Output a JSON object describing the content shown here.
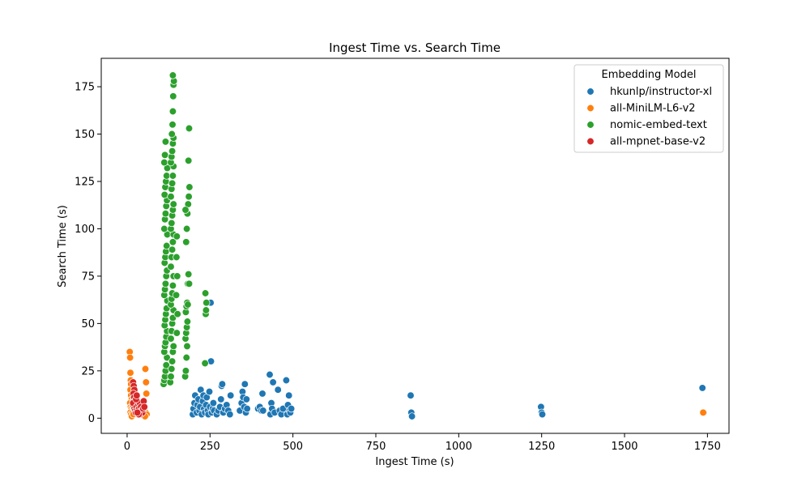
{
  "chart_data": {
    "type": "scatter",
    "title": "Ingest Time vs. Search Time",
    "xlabel": "Ingest Time (s)",
    "ylabel": "Search Time (s)",
    "xlim": [
      -78,
      1815
    ],
    "ylim": [
      -8,
      190
    ],
    "xticks": [
      0,
      250,
      500,
      750,
      1000,
      1250,
      1500,
      1750
    ],
    "yticks": [
      0,
      25,
      50,
      75,
      100,
      125,
      150,
      175
    ],
    "grid": false,
    "legend": {
      "title": "Embedding Model",
      "placement": "top-right"
    },
    "series": [
      {
        "name": "hkunlp/instructor-xl",
        "color": "#1f77b4",
        "points": [
          [
            198,
            2
          ],
          [
            200,
            5
          ],
          [
            203,
            8
          ],
          [
            205,
            12
          ],
          [
            210,
            3
          ],
          [
            212,
            7
          ],
          [
            215,
            10
          ],
          [
            218,
            4
          ],
          [
            220,
            6
          ],
          [
            222,
            15
          ],
          [
            225,
            2
          ],
          [
            228,
            9
          ],
          [
            230,
            12
          ],
          [
            232,
            5
          ],
          [
            235,
            3
          ],
          [
            238,
            7
          ],
          [
            240,
            11
          ],
          [
            243,
            4
          ],
          [
            245,
            2
          ],
          [
            248,
            14
          ],
          [
            250,
            6
          ],
          [
            252,
            61
          ],
          [
            253,
            30
          ],
          [
            255,
            3
          ],
          [
            258,
            5
          ],
          [
            260,
            8
          ],
          [
            262,
            4
          ],
          [
            270,
            2
          ],
          [
            275,
            4
          ],
          [
            280,
            6
          ],
          [
            283,
            10
          ],
          [
            285,
            17
          ],
          [
            287,
            18
          ],
          [
            290,
            3
          ],
          [
            295,
            5
          ],
          [
            300,
            7
          ],
          [
            305,
            4
          ],
          [
            310,
            2
          ],
          [
            312,
            12
          ],
          [
            340,
            4
          ],
          [
            345,
            8
          ],
          [
            348,
            14
          ],
          [
            350,
            11
          ],
          [
            353,
            6
          ],
          [
            355,
            18
          ],
          [
            358,
            3
          ],
          [
            360,
            10
          ],
          [
            362,
            5
          ],
          [
            395,
            5
          ],
          [
            400,
            6
          ],
          [
            405,
            4
          ],
          [
            408,
            13
          ],
          [
            410,
            4
          ],
          [
            430,
            23
          ],
          [
            432,
            2
          ],
          [
            435,
            8
          ],
          [
            437,
            5
          ],
          [
            440,
            19
          ],
          [
            445,
            3
          ],
          [
            455,
            15
          ],
          [
            460,
            4
          ],
          [
            465,
            2
          ],
          [
            470,
            5
          ],
          [
            480,
            20
          ],
          [
            483,
            2
          ],
          [
            485,
            7
          ],
          [
            488,
            12
          ],
          [
            490,
            4
          ],
          [
            492,
            3
          ],
          [
            495,
            5
          ],
          [
            855,
            12
          ],
          [
            857,
            3
          ],
          [
            859,
            1
          ],
          [
            1248,
            6
          ],
          [
            1250,
            3
          ],
          [
            1252,
            2
          ],
          [
            1735,
            16
          ],
          [
            1737,
            3
          ],
          [
            1739,
            3
          ]
        ]
      },
      {
        "name": "all-MiniLM-L6-v2",
        "color": "#ff7f0e",
        "points": [
          [
            8,
            35
          ],
          [
            9,
            32
          ],
          [
            10,
            24
          ],
          [
            11,
            20
          ],
          [
            12,
            18
          ],
          [
            10,
            15
          ],
          [
            12,
            12
          ],
          [
            14,
            10
          ],
          [
            9,
            8
          ],
          [
            11,
            6
          ],
          [
            13,
            5
          ],
          [
            15,
            4
          ],
          [
            10,
            3
          ],
          [
            12,
            2
          ],
          [
            14,
            1
          ],
          [
            16,
            7
          ],
          [
            18,
            9
          ],
          [
            20,
            11
          ],
          [
            22,
            14
          ],
          [
            17,
            3
          ],
          [
            19,
            2
          ],
          [
            21,
            5
          ],
          [
            23,
            6
          ],
          [
            55,
            26
          ],
          [
            57,
            19
          ],
          [
            58,
            13
          ],
          [
            56,
            3
          ],
          [
            59,
            2
          ],
          [
            54,
            1
          ],
          [
            1737,
            3
          ]
        ]
      },
      {
        "name": "nomic-embed-text",
        "color": "#2ca02c",
        "points": [
          [
            110,
            18
          ],
          [
            112,
            20
          ],
          [
            114,
            22
          ],
          [
            116,
            25
          ],
          [
            118,
            28
          ],
          [
            120,
            32
          ],
          [
            112,
            35
          ],
          [
            114,
            38
          ],
          [
            116,
            40
          ],
          [
            118,
            43
          ],
          [
            120,
            46
          ],
          [
            113,
            49
          ],
          [
            115,
            52
          ],
          [
            117,
            55
          ],
          [
            119,
            58
          ],
          [
            121,
            62
          ],
          [
            112,
            65
          ],
          [
            114,
            68
          ],
          [
            116,
            71
          ],
          [
            118,
            75
          ],
          [
            120,
            78
          ],
          [
            113,
            82
          ],
          [
            115,
            85
          ],
          [
            117,
            88
          ],
          [
            119,
            91
          ],
          [
            121,
            97
          ],
          [
            112,
            100
          ],
          [
            114,
            105
          ],
          [
            116,
            108
          ],
          [
            118,
            112
          ],
          [
            120,
            115
          ],
          [
            113,
            118
          ],
          [
            115,
            122
          ],
          [
            117,
            125
          ],
          [
            119,
            128
          ],
          [
            121,
            132
          ],
          [
            112,
            135
          ],
          [
            114,
            139
          ],
          [
            116,
            146
          ],
          [
            130,
            19
          ],
          [
            132,
            22
          ],
          [
            134,
            26
          ],
          [
            136,
            30
          ],
          [
            138,
            35
          ],
          [
            140,
            38
          ],
          [
            132,
            42
          ],
          [
            134,
            46
          ],
          [
            136,
            50
          ],
          [
            138,
            53
          ],
          [
            140,
            57
          ],
          [
            132,
            60
          ],
          [
            134,
            63
          ],
          [
            136,
            66
          ],
          [
            138,
            70
          ],
          [
            140,
            75
          ],
          [
            132,
            80
          ],
          [
            134,
            85
          ],
          [
            136,
            89
          ],
          [
            138,
            93
          ],
          [
            140,
            97
          ],
          [
            132,
            100
          ],
          [
            134,
            103
          ],
          [
            136,
            107
          ],
          [
            138,
            110
          ],
          [
            140,
            113
          ],
          [
            132,
            117
          ],
          [
            134,
            121
          ],
          [
            136,
            124
          ],
          [
            138,
            128
          ],
          [
            140,
            133
          ],
          [
            132,
            135
          ],
          [
            134,
            138
          ],
          [
            136,
            141
          ],
          [
            138,
            145
          ],
          [
            140,
            148
          ],
          [
            135,
            150
          ],
          [
            137,
            155
          ],
          [
            138,
            162
          ],
          [
            139,
            170
          ],
          [
            140,
            176
          ],
          [
            141,
            178
          ],
          [
            138,
            181
          ],
          [
            150,
            45
          ],
          [
            152,
            55
          ],
          [
            148,
            65
          ],
          [
            151,
            75
          ],
          [
            149,
            85
          ],
          [
            150,
            96
          ],
          [
            175,
            22
          ],
          [
            177,
            25
          ],
          [
            179,
            32
          ],
          [
            181,
            38
          ],
          [
            176,
            42
          ],
          [
            178,
            45
          ],
          [
            180,
            48
          ],
          [
            182,
            51
          ],
          [
            177,
            56
          ],
          [
            179,
            59
          ],
          [
            181,
            61
          ],
          [
            183,
            71
          ],
          [
            185,
            76
          ],
          [
            178,
            93
          ],
          [
            180,
            100
          ],
          [
            182,
            108
          ],
          [
            184,
            113
          ],
          [
            176,
            110
          ],
          [
            186,
            117
          ],
          [
            188,
            122
          ],
          [
            185,
            136
          ],
          [
            187,
            153
          ],
          [
            183,
            60
          ],
          [
            187,
            71
          ],
          [
            235,
            29
          ],
          [
            237,
            55
          ],
          [
            238,
            57
          ],
          [
            239,
            61
          ],
          [
            236,
            66
          ]
        ]
      },
      {
        "name": "all-mpnet-base-v2",
        "color": "#d62728",
        "points": [
          [
            18,
            19
          ],
          [
            20,
            17
          ],
          [
            22,
            15
          ],
          [
            19,
            13
          ],
          [
            21,
            11
          ],
          [
            23,
            9
          ],
          [
            25,
            7
          ],
          [
            20,
            6
          ],
          [
            22,
            5
          ],
          [
            24,
            4
          ],
          [
            26,
            3
          ],
          [
            18,
            8
          ],
          [
            28,
            6
          ],
          [
            30,
            4
          ],
          [
            32,
            3
          ],
          [
            34,
            7
          ],
          [
            36,
            5
          ],
          [
            38,
            8
          ],
          [
            40,
            2
          ],
          [
            42,
            6
          ],
          [
            44,
            4
          ],
          [
            46,
            3
          ],
          [
            48,
            5
          ],
          [
            50,
            9
          ],
          [
            52,
            6
          ],
          [
            35,
            2
          ],
          [
            27,
            10
          ],
          [
            29,
            12
          ],
          [
            31,
            3
          ]
        ]
      }
    ]
  }
}
